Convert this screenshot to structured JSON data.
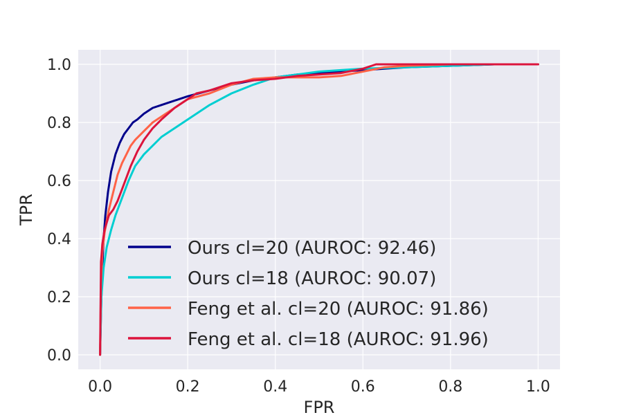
{
  "chart_data": {
    "type": "line",
    "title": "",
    "xlabel": "FPR",
    "ylabel": "TPR",
    "xlim": [
      -0.05,
      1.05
    ],
    "ylim": [
      -0.05,
      1.05
    ],
    "xticks": [
      "0.0",
      "0.2",
      "0.4",
      "0.6",
      "0.8",
      "1.0"
    ],
    "yticks": [
      "0.0",
      "0.2",
      "0.4",
      "0.6",
      "0.8",
      "1.0"
    ],
    "grid": true,
    "legend_position": "lower-right",
    "series": [
      {
        "name": "Ours cl=20 (AUROC: 92.46)",
        "color": "#00008B",
        "x": [
          0,
          0.002,
          0.005,
          0.008,
          0.012,
          0.018,
          0.025,
          0.035,
          0.045,
          0.055,
          0.065,
          0.075,
          0.085,
          0.1,
          0.12,
          0.14,
          0.16,
          0.18,
          0.2,
          0.25,
          0.3,
          0.35,
          0.4,
          0.45,
          0.5,
          0.55,
          0.6,
          0.65,
          0.7,
          0.8,
          0.9,
          1.0
        ],
        "y": [
          0,
          0.15,
          0.3,
          0.4,
          0.48,
          0.56,
          0.63,
          0.69,
          0.73,
          0.76,
          0.78,
          0.8,
          0.81,
          0.83,
          0.85,
          0.86,
          0.87,
          0.88,
          0.89,
          0.91,
          0.93,
          0.945,
          0.955,
          0.965,
          0.97,
          0.975,
          0.98,
          0.985,
          0.99,
          0.995,
          1.0,
          1.0
        ]
      },
      {
        "name": "Ours cl=18 (AUROC: 90.07)",
        "color": "#00CED1",
        "x": [
          0,
          0.003,
          0.008,
          0.015,
          0.025,
          0.035,
          0.05,
          0.065,
          0.08,
          0.1,
          0.12,
          0.14,
          0.17,
          0.2,
          0.25,
          0.3,
          0.35,
          0.4,
          0.45,
          0.5,
          0.55,
          0.6,
          0.7,
          0.8,
          0.9,
          1.0
        ],
        "y": [
          0,
          0.2,
          0.3,
          0.37,
          0.43,
          0.48,
          0.54,
          0.6,
          0.65,
          0.69,
          0.72,
          0.75,
          0.78,
          0.81,
          0.86,
          0.9,
          0.93,
          0.955,
          0.965,
          0.975,
          0.98,
          0.985,
          0.99,
          0.995,
          1.0,
          1.0
        ]
      },
      {
        "name": "Feng et al. cl=20 (AUROC: 91.86)",
        "color": "#FF6347",
        "x": [
          0,
          0.002,
          0.005,
          0.01,
          0.015,
          0.02,
          0.03,
          0.04,
          0.05,
          0.06,
          0.07,
          0.08,
          0.1,
          0.12,
          0.15,
          0.18,
          0.2,
          0.25,
          0.3,
          0.35,
          0.4,
          0.45,
          0.5,
          0.55,
          0.6,
          0.65,
          0.7,
          0.8,
          0.9,
          1.0
        ],
        "y": [
          0,
          0.25,
          0.35,
          0.42,
          0.46,
          0.5,
          0.56,
          0.62,
          0.66,
          0.69,
          0.72,
          0.74,
          0.77,
          0.8,
          0.83,
          0.86,
          0.88,
          0.9,
          0.93,
          0.95,
          0.955,
          0.955,
          0.955,
          0.96,
          0.975,
          0.99,
          0.995,
          1.0,
          1.0,
          1.0
        ]
      },
      {
        "name": "Feng et al. cl=18 (AUROC: 91.96)",
        "color": "#DC143C",
        "x": [
          0,
          0.002,
          0.005,
          0.01,
          0.02,
          0.03,
          0.04,
          0.05,
          0.06,
          0.07,
          0.085,
          0.1,
          0.12,
          0.14,
          0.17,
          0.2,
          0.22,
          0.25,
          0.3,
          0.35,
          0.4,
          0.45,
          0.5,
          0.55,
          0.6,
          0.63,
          0.7,
          0.8,
          0.9,
          1.0
        ],
        "y": [
          0,
          0.32,
          0.38,
          0.43,
          0.48,
          0.5,
          0.53,
          0.57,
          0.61,
          0.65,
          0.7,
          0.74,
          0.78,
          0.81,
          0.85,
          0.88,
          0.9,
          0.91,
          0.935,
          0.945,
          0.95,
          0.96,
          0.965,
          0.97,
          0.985,
          1.0,
          1.0,
          1.0,
          1.0,
          1.0
        ]
      }
    ]
  }
}
